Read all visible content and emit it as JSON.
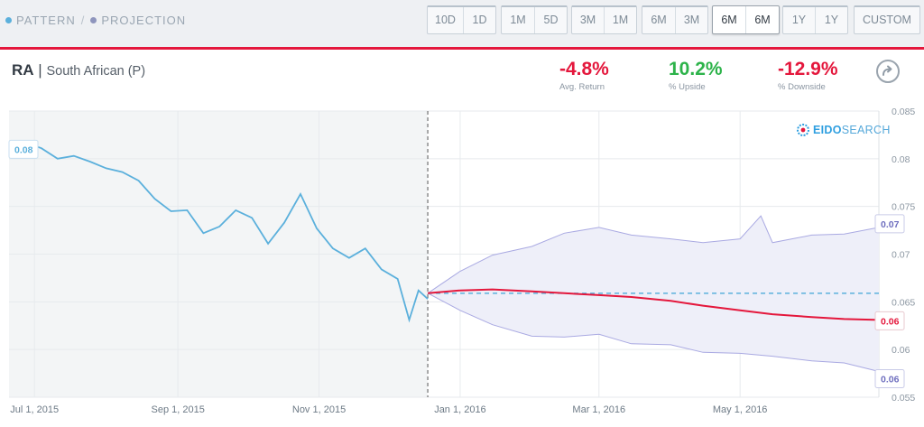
{
  "legend": {
    "pattern": "PATTERN",
    "separator": "/",
    "projection": "PROJECTION",
    "pattern_color": "#5bb0dc",
    "projection_color": "#8e95bd"
  },
  "range_buttons": [
    {
      "a": "10D",
      "b": "1D",
      "active": false
    },
    {
      "a": "1M",
      "b": "5D",
      "active": false
    },
    {
      "a": "3M",
      "b": "1M",
      "active": false
    },
    {
      "a": "6M",
      "b": "3M",
      "active": false
    },
    {
      "a": "6M",
      "b": "6M",
      "active": true
    },
    {
      "a": "1Y",
      "b": "1Y",
      "active": false
    }
  ],
  "custom_label": "CUSTOM",
  "ticker": {
    "symbol": "RA",
    "separator": "|",
    "name": "South African (P)"
  },
  "stats": [
    {
      "value": "-4.8%",
      "label": "Avg. Return",
      "color": "#e4173c"
    },
    {
      "value": "10.2%",
      "label": "% Upside",
      "color": "#2db34a"
    },
    {
      "value": "-12.9%",
      "label": "% Downside",
      "color": "#e4173c"
    }
  ],
  "share_icon": "share-arrow-icon",
  "brand": {
    "part1": "EIDO",
    "part2": "SEARCH",
    "icon": "eidosearch-logo-icon"
  },
  "chart_data": {
    "type": "line",
    "x_tick_labels": [
      "Jul 1, 2015",
      "Sep 1, 2015",
      "Nov 1, 2015",
      "Jan 1, 2016",
      "Mar 1, 2016",
      "May 1, 2016"
    ],
    "y_tick_labels": [
      "0.085",
      "0.08",
      "0.075",
      "0.07",
      "0.065",
      "0.06",
      "0.055"
    ],
    "ylim": [
      0.055,
      0.085
    ],
    "xlim": [
      "2015-06-20",
      "2016-06-30"
    ],
    "divider_date": "2015-12-18",
    "reference_value": 0.0659,
    "start_label": "0.08",
    "end_labels": {
      "upper": "0.07",
      "mid": "0.06",
      "lower": "0.06"
    },
    "colors": {
      "pattern": "#5bb0dc",
      "projection": "#e4173c",
      "band_fill": "#eeeff9",
      "band_line": "#a9a9e2",
      "reference": "#5bb0dc",
      "history_bg": "#f3f5f6"
    },
    "series": [
      {
        "name": "PATTERN",
        "points": [
          [
            "2015-06-20",
            0.0808
          ],
          [
            "2015-06-27",
            0.0817
          ],
          [
            "2015-07-04",
            0.0811
          ],
          [
            "2015-07-11",
            0.08
          ],
          [
            "2015-07-18",
            0.0803
          ],
          [
            "2015-07-25",
            0.0797
          ],
          [
            "2015-08-01",
            0.079
          ],
          [
            "2015-08-08",
            0.0786
          ],
          [
            "2015-08-15",
            0.0777
          ],
          [
            "2015-08-22",
            0.0758
          ],
          [
            "2015-08-29",
            0.0745
          ],
          [
            "2015-09-05",
            0.0746
          ],
          [
            "2015-09-12",
            0.0722
          ],
          [
            "2015-09-19",
            0.0729
          ],
          [
            "2015-09-26",
            0.0746
          ],
          [
            "2015-10-03",
            0.0738
          ],
          [
            "2015-10-10",
            0.0711
          ],
          [
            "2015-10-17",
            0.0733
          ],
          [
            "2015-10-24",
            0.0763
          ],
          [
            "2015-10-31",
            0.0727
          ],
          [
            "2015-11-07",
            0.0706
          ],
          [
            "2015-11-14",
            0.0696
          ],
          [
            "2015-11-21",
            0.0706
          ],
          [
            "2015-11-28",
            0.0684
          ],
          [
            "2015-12-05",
            0.0674
          ],
          [
            "2015-12-10",
            0.0631
          ],
          [
            "2015-12-14",
            0.0662
          ],
          [
            "2015-12-18",
            0.0653
          ]
        ]
      },
      {
        "name": "PROJECTION",
        "points": [
          [
            "2015-12-18",
            0.0659
          ],
          [
            "2016-01-01",
            0.0662
          ],
          [
            "2016-01-15",
            0.0663
          ],
          [
            "2016-02-01",
            0.0661
          ],
          [
            "2016-02-15",
            0.0659
          ],
          [
            "2016-03-01",
            0.0657
          ],
          [
            "2016-03-15",
            0.0655
          ],
          [
            "2016-04-01",
            0.0651
          ],
          [
            "2016-04-15",
            0.0646
          ],
          [
            "2016-05-01",
            0.0641
          ],
          [
            "2016-05-15",
            0.0637
          ],
          [
            "2016-06-01",
            0.0634
          ],
          [
            "2016-06-15",
            0.0632
          ],
          [
            "2016-06-30",
            0.0631
          ]
        ]
      },
      {
        "name": "upside",
        "points": [
          [
            "2015-12-18",
            0.0659
          ],
          [
            "2016-01-01",
            0.0682
          ],
          [
            "2016-01-15",
            0.0699
          ],
          [
            "2016-02-01",
            0.0708
          ],
          [
            "2016-02-15",
            0.0722
          ],
          [
            "2016-03-01",
            0.0728
          ],
          [
            "2016-03-15",
            0.072
          ],
          [
            "2016-04-01",
            0.0716
          ],
          [
            "2016-04-15",
            0.0712
          ],
          [
            "2016-05-01",
            0.0716
          ],
          [
            "2016-05-10",
            0.074
          ],
          [
            "2016-05-15",
            0.0712
          ],
          [
            "2016-06-01",
            0.072
          ],
          [
            "2016-06-15",
            0.0721
          ],
          [
            "2016-06-30",
            0.0728
          ]
        ]
      },
      {
        "name": "downside",
        "points": [
          [
            "2015-12-18",
            0.0659
          ],
          [
            "2016-01-01",
            0.0641
          ],
          [
            "2016-01-15",
            0.0626
          ],
          [
            "2016-02-01",
            0.0614
          ],
          [
            "2016-02-15",
            0.0613
          ],
          [
            "2016-03-01",
            0.0616
          ],
          [
            "2016-03-15",
            0.0606
          ],
          [
            "2016-04-01",
            0.0605
          ],
          [
            "2016-04-15",
            0.0597
          ],
          [
            "2016-05-01",
            0.0596
          ],
          [
            "2016-05-15",
            0.0593
          ],
          [
            "2016-06-01",
            0.0588
          ],
          [
            "2016-06-15",
            0.0586
          ],
          [
            "2016-06-30",
            0.0577
          ]
        ]
      }
    ]
  }
}
